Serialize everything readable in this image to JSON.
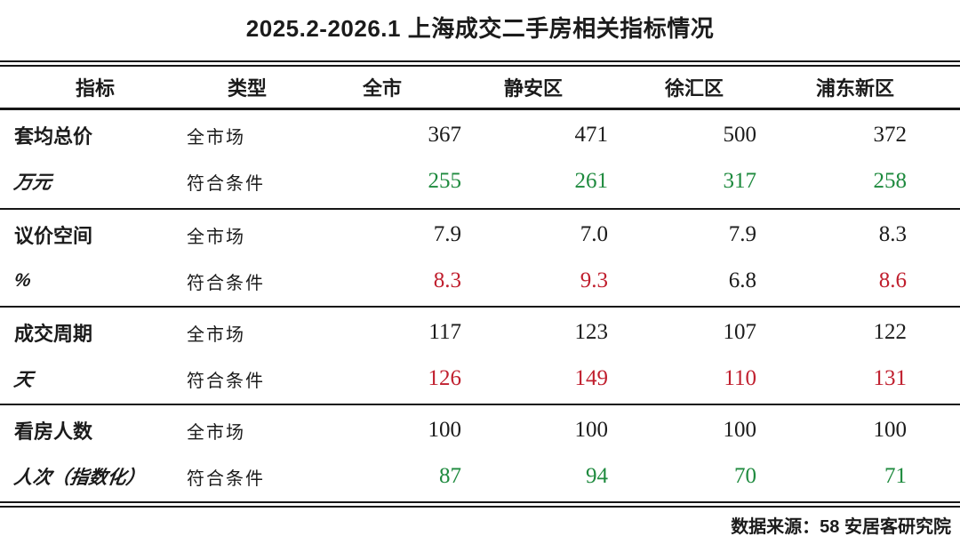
{
  "title": "2025.2-2026.1 上海成交二手房相关指标情况",
  "footer": {
    "source": "数据来源：58 安居客研究院"
  },
  "colors": {
    "text_black": "#1b1b1b",
    "highlight_green": "#1e8a3e",
    "highlight_red": "#c01f2e",
    "rule_black": "#161616"
  },
  "chart_data": {
    "type": "table",
    "title": "2025.2-2026.1 上海成交二手房相关指标情况",
    "columns": [
      "指标",
      "类型",
      "全市",
      "静安区",
      "徐汇区",
      "浦东新区"
    ],
    "groups": [
      {
        "indicator": "套均总价",
        "unit": "万元",
        "rows": [
          {
            "type": "全市场",
            "values": [
              "367",
              "471",
              "500",
              "372"
            ],
            "colors": [
              "black",
              "black",
              "black",
              "black"
            ]
          },
          {
            "type": "符合条件",
            "values": [
              "255",
              "261",
              "317",
              "258"
            ],
            "colors": [
              "green",
              "green",
              "green",
              "green"
            ]
          }
        ]
      },
      {
        "indicator": "议价空间",
        "unit": "%",
        "rows": [
          {
            "type": "全市场",
            "values": [
              "7.9",
              "7.0",
              "7.9",
              "8.3"
            ],
            "colors": [
              "black",
              "black",
              "black",
              "black"
            ]
          },
          {
            "type": "符合条件",
            "values": [
              "8.3",
              "9.3",
              "6.8",
              "8.6"
            ],
            "colors": [
              "red",
              "red",
              "black",
              "red"
            ]
          }
        ]
      },
      {
        "indicator": "成交周期",
        "unit": "天",
        "rows": [
          {
            "type": "全市场",
            "values": [
              "117",
              "123",
              "107",
              "122"
            ],
            "colors": [
              "black",
              "black",
              "black",
              "black"
            ]
          },
          {
            "type": "符合条件",
            "values": [
              "126",
              "149",
              "110",
              "131"
            ],
            "colors": [
              "red",
              "red",
              "red",
              "red"
            ]
          }
        ]
      },
      {
        "indicator": "看房人数",
        "unit": "人次（指数化）",
        "rows": [
          {
            "type": "全市场",
            "values": [
              "100",
              "100",
              "100",
              "100"
            ],
            "colors": [
              "black",
              "black",
              "black",
              "black"
            ]
          },
          {
            "type": "符合条件",
            "values": [
              "87",
              "94",
              "70",
              "71"
            ],
            "colors": [
              "green",
              "green",
              "green",
              "green"
            ]
          }
        ]
      }
    ]
  }
}
